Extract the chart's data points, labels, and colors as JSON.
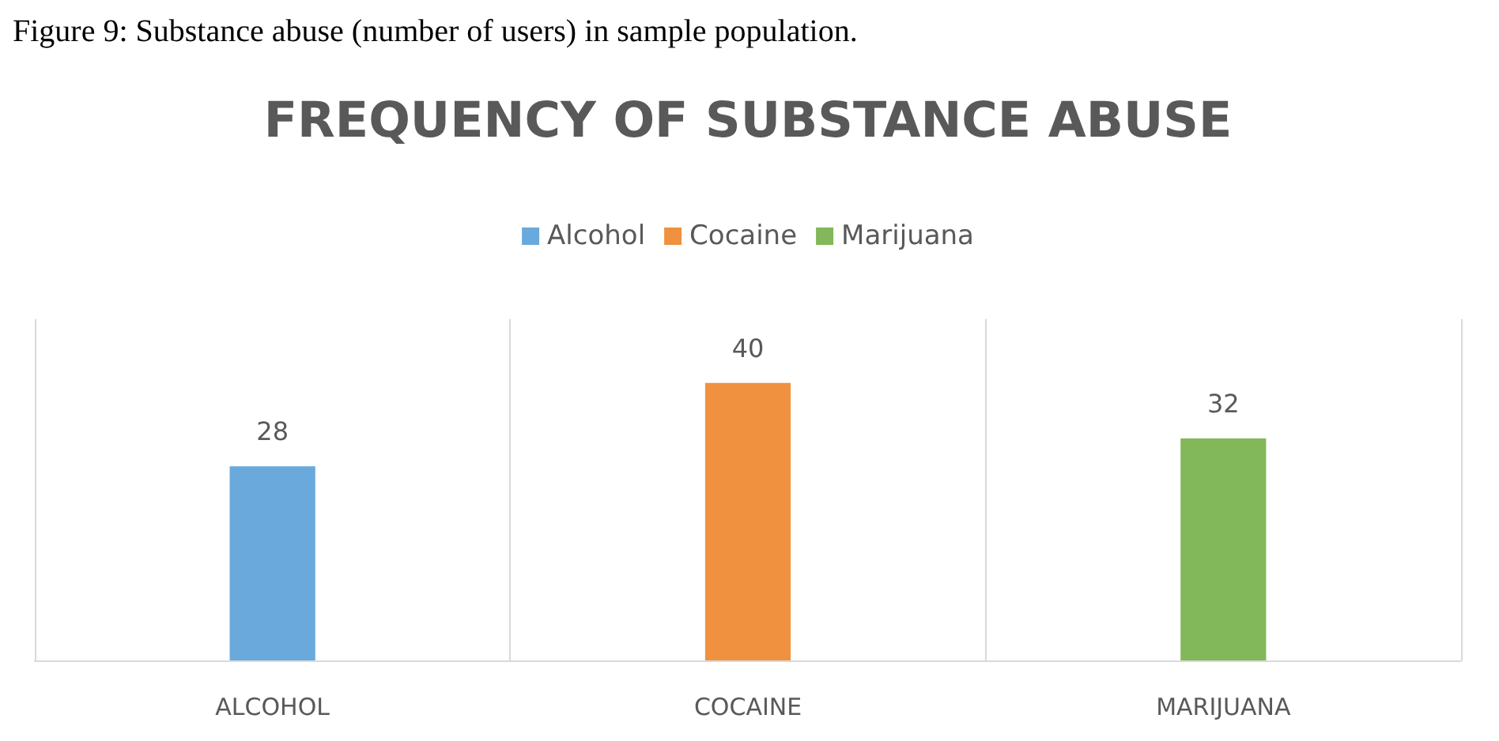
{
  "chart_data": {
    "type": "bar",
    "title": "FREQUENCY OF SUBSTANCE ABUSE",
    "annotations": [
      "Figure 9: Substance abuse (number of users) in sample population."
    ],
    "categories": [
      "ALCOHOL",
      "COCAINE",
      "MARIJUANA"
    ],
    "series": [
      {
        "name": "Alcohol",
        "color": "#6aa9dc",
        "values": [
          28,
          null,
          null
        ]
      },
      {
        "name": "Cocaine",
        "color": "#f0913f",
        "values": [
          null,
          40,
          null
        ]
      },
      {
        "name": "Marijuana",
        "color": "#82b75a",
        "values": [
          null,
          null,
          32
        ]
      }
    ],
    "stacked": true,
    "data_labels": true,
    "grid": "x",
    "legend": "top"
  }
}
